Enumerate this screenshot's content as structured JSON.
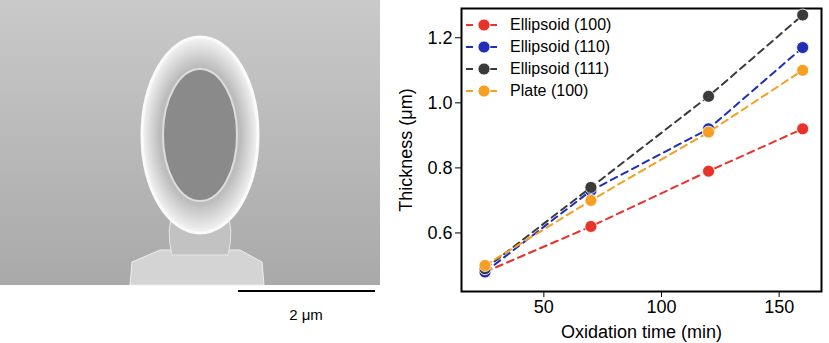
{
  "chart_data": {
    "type": "line",
    "xlabel": "Oxidation time (min)",
    "ylabel": "Thickness (μm)",
    "x": [
      25,
      70,
      120,
      160
    ],
    "series": [
      {
        "name": "Ellipsoid (100)",
        "color": "#e8332a",
        "values": [
          0.48,
          0.62,
          0.79,
          0.92
        ]
      },
      {
        "name": "Ellipsoid (110)",
        "color": "#1f2fb5",
        "values": [
          0.48,
          0.73,
          0.92,
          1.17
        ]
      },
      {
        "name": "Ellipsoid (111)",
        "color": "#3a3a3a",
        "values": [
          0.49,
          0.74,
          1.02,
          1.27
        ]
      },
      {
        "name": "Plate (100)",
        "color": "#f5a023",
        "values": [
          0.5,
          0.7,
          0.91,
          1.1
        ]
      }
    ],
    "xlim": [
      15,
      168
    ],
    "xticks": [
      50,
      100,
      150
    ],
    "ylim": [
      0.42,
      1.29
    ],
    "yticks": [
      0.6,
      0.8,
      {
        "value": 1,
        "label": "1.0"
      },
      1.2
    ],
    "marker": "circle",
    "line_style": "dashed",
    "legend": "top-left",
    "grid": false
  },
  "image": {
    "scale_bar": "2 μm"
  }
}
